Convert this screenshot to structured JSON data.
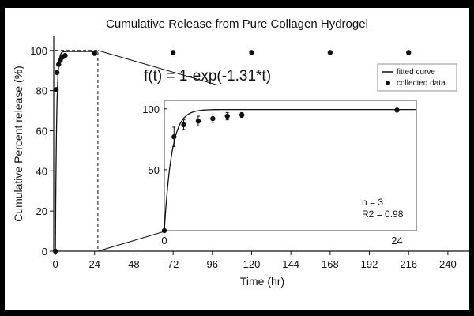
{
  "chart_data": {
    "type": "scatter",
    "title": "Cumulative Release from Pure Collagen Hydrogel",
    "xlabel": "Time (hr)",
    "ylabel": "Cumulative Percent release (%)",
    "xlim": [
      -1,
      256
    ],
    "ylim": [
      0,
      107
    ],
    "x_ticks": [
      0,
      24,
      48,
      72,
      96,
      120,
      144,
      168,
      192,
      216,
      240
    ],
    "y_ticks": [
      0,
      20,
      40,
      60,
      80,
      100
    ],
    "grid": false,
    "legend_position": "top-right",
    "equation": "f(t) = 1-exp(-1.31*t)",
    "series": [
      {
        "name": "collected data",
        "marker": "circle",
        "x": [
          0,
          0.5,
          1,
          2,
          3,
          4,
          5,
          6,
          24,
          72,
          120,
          168,
          216
        ],
        "y": [
          0,
          80.5,
          89,
          93,
          95,
          96.5,
          97,
          97.5,
          98.5,
          99,
          99,
          99,
          99
        ]
      }
    ],
    "fitted_curve": {
      "name": "fitted curve",
      "y_at_x0": 0,
      "plateau": 99.5,
      "rate": 1.31
    },
    "zoom_region": {
      "x": [
        0,
        26
      ],
      "y": [
        0,
        100
      ]
    },
    "inset": {
      "xlim": [
        0,
        26
      ],
      "ylim": [
        0,
        107
      ],
      "x_ticks": [
        0,
        24
      ],
      "y_ticks": [
        50,
        100
      ],
      "fitted_curve": {
        "y_at_x0": 0,
        "plateau": 99.5,
        "rate": 1.31
      },
      "points": [
        {
          "x": 0,
          "y": 0,
          "err": 0
        },
        {
          "x": 1,
          "y": 77,
          "err": 8
        },
        {
          "x": 2,
          "y": 87,
          "err": 4
        },
        {
          "x": 3.5,
          "y": 90,
          "err": 4
        },
        {
          "x": 5,
          "y": 92,
          "err": 3
        },
        {
          "x": 6.5,
          "y": 94,
          "err": 3
        },
        {
          "x": 8,
          "y": 95,
          "err": 2
        },
        {
          "x": 24,
          "y": 99,
          "err": 0
        }
      ],
      "annotations": [
        "n = 3",
        "R2 = 0.98"
      ]
    }
  }
}
